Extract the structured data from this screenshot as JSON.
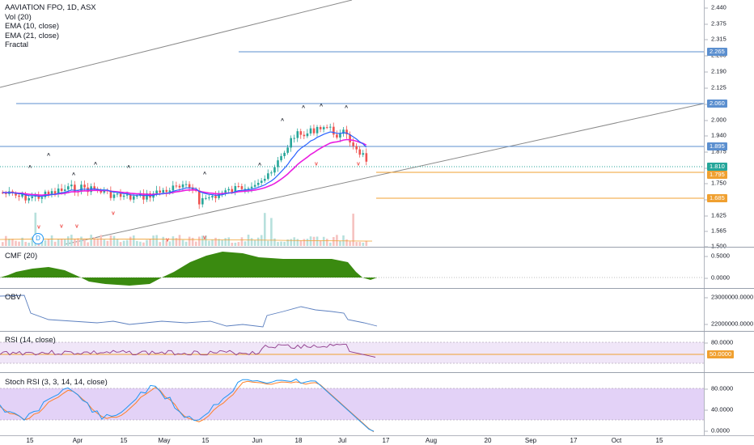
{
  "main_legend": {
    "symbol": "AAVIATION FPO, 1D, ASX",
    "indicators": [
      "Vol (20)",
      "EMA (10, close)",
      "EMA (21, close)",
      "Fractal"
    ]
  },
  "colors": {
    "up": "#26a69a",
    "down": "#ef5350",
    "ema10": "#2962ff",
    "ema21": "#e91ee0",
    "hline_blue": "#5b8fcf",
    "hline_orange": "#f0a030",
    "cmf": "#3a8a10",
    "obv": "#5b7fbf",
    "rsi": "#8e3a8a",
    "stoch_k": "#2196f3",
    "stoch_d": "#ff7f27",
    "band": "#e3d2f7"
  },
  "price_axis": {
    "ticks": [
      "2.440",
      "2.375",
      "2.315",
      "2.250",
      "2.190",
      "2.125",
      "2.060",
      "2.000",
      "1.940",
      "1.875",
      "1.810",
      "1.750",
      "1.685",
      "1.625",
      "1.565",
      "1.500"
    ],
    "tags": [
      {
        "label": "2.265",
        "color": "#5b8fcf"
      },
      {
        "label": "2.060",
        "color": "#5b8fcf"
      },
      {
        "label": "1.895",
        "color": "#5b8fcf"
      },
      {
        "label": "1.810",
        "color": "#26a69a"
      },
      {
        "label": "1.795",
        "color": "#f0a030"
      },
      {
        "label": "1.685",
        "color": "#f0a030"
      }
    ]
  },
  "cmf_pane": {
    "title": "CMF (20)",
    "ticks": [
      "0.5000",
      "0.0000"
    ]
  },
  "obv_pane": {
    "title": "OBV",
    "ticks": [
      "23000000.0000",
      "22000000.0000"
    ]
  },
  "rsi_pane": {
    "title": "RSI (14, close)",
    "ticks": [
      "80.0000",
      "50.0000"
    ],
    "tag": "50.0000"
  },
  "stoch_pane": {
    "title": "Stoch RSI (3, 3, 14, 14, close)",
    "ticks": [
      "80.0000",
      "40.0000",
      "0.0000"
    ]
  },
  "time_axis": [
    "15",
    "Apr",
    "15",
    "May",
    "15",
    "Jun",
    "18",
    "Jul",
    "17",
    "Aug",
    "20",
    "Sep",
    "17",
    "Oct",
    "15"
  ],
  "badge": "D",
  "fractal_up_glyph": "^",
  "fractal_down_glyph": "v"
}
